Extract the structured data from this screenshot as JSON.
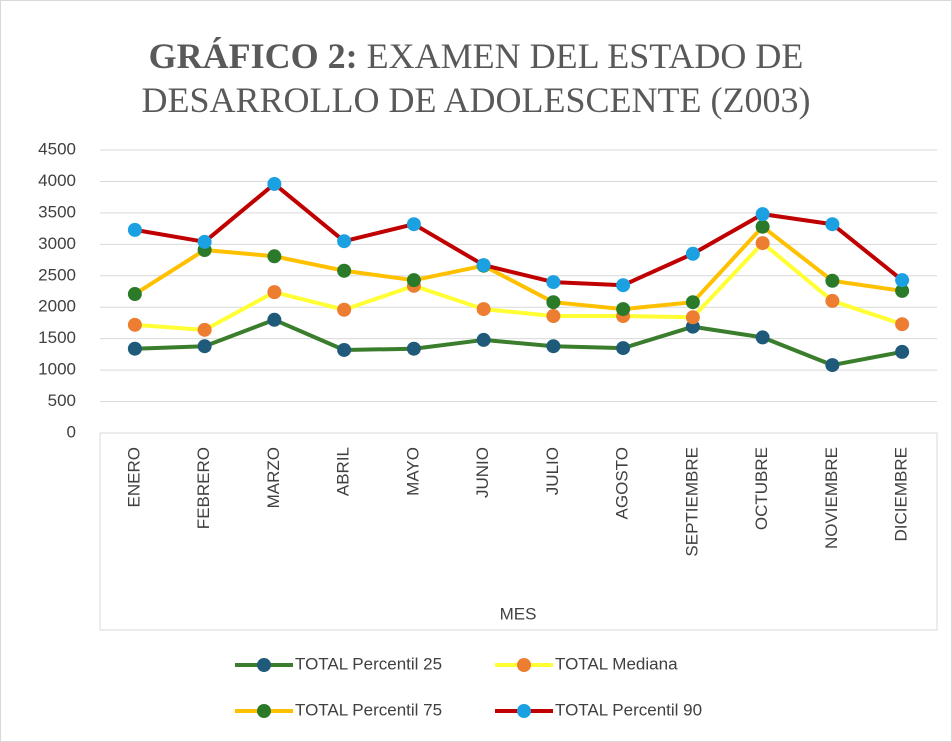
{
  "chart_data": {
    "type": "line",
    "title_prefix": "GRÁFICO 2:",
    "title": "EXAMEN DEL  ESTADO DE DESARROLLO DE ADOLESCENTE (Z003)",
    "xlabel": "MES",
    "categories": [
      "ENERO",
      "FEBRERO",
      "MARZO",
      "ABRIL",
      "MAYO",
      "JUNIO",
      "JULIO",
      "AGOSTO",
      "SEPTIEMBRE",
      "OCTUBRE",
      "NOVIEMBRE",
      "DICIEMBRE"
    ],
    "series": [
      {
        "name": "TOTAL Percentil 25",
        "color": "#3a7d2c",
        "marker_color": "#1f5a7a",
        "values": [
          1340,
          1380,
          1800,
          1320,
          1340,
          1480,
          1380,
          1350,
          1690,
          1520,
          1080,
          1290
        ]
      },
      {
        "name": "TOTAL Mediana",
        "color": "#ffff33",
        "marker_color": "#ed7d31",
        "values": [
          1720,
          1640,
          2240,
          1960,
          2340,
          1970,
          1860,
          1860,
          1840,
          3020,
          2100,
          1730
        ]
      },
      {
        "name": "TOTAL Percentil 75",
        "color": "#ffc000",
        "marker_color": "#2a7a2a",
        "values": [
          2210,
          2910,
          2810,
          2580,
          2430,
          2660,
          2080,
          1970,
          2080,
          3280,
          2420,
          2260
        ]
      },
      {
        "name": "TOTAL Percentil 90",
        "color": "#c00000",
        "marker_color": "#1ba1e2",
        "values": [
          3230,
          3040,
          3960,
          3050,
          3320,
          2670,
          2400,
          2350,
          2850,
          3480,
          3320,
          2430
        ]
      }
    ],
    "ylim": [
      0,
      4500
    ],
    "yticks": [
      0,
      500,
      1000,
      1500,
      2000,
      2500,
      3000,
      3500,
      4000,
      4500
    ],
    "grid": true
  }
}
